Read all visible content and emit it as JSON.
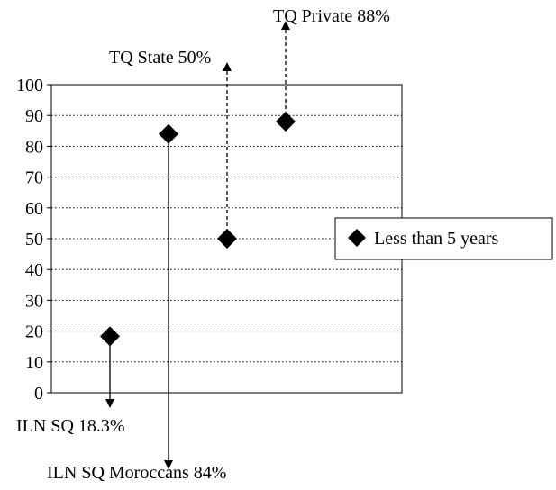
{
  "chart_data": {
    "type": "scatter",
    "title": "",
    "xlabel": "",
    "ylabel": "",
    "ylim": [
      0,
      100
    ],
    "yticks": [
      "0",
      "10",
      "20",
      "30",
      "40",
      "50",
      "60",
      "70",
      "80",
      "90",
      "100"
    ],
    "grid": "horizontal dotted",
    "legend": {
      "position": "right",
      "entries": [
        "Less than 5 years"
      ]
    },
    "series": [
      {
        "name": "Less than 5 years",
        "marker": "diamond",
        "points": [
          {
            "x": 1,
            "y": 18.3
          },
          {
            "x": 2,
            "y": 84
          },
          {
            "x": 3,
            "y": 50
          },
          {
            "x": 4,
            "y": 88
          }
        ]
      }
    ],
    "annotations": [
      {
        "text": "ILN SQ 18.3%",
        "point": 0,
        "arrow": "down",
        "style": "solid"
      },
      {
        "text": "ILN SQ Moroccans 84%",
        "point": 1,
        "arrow": "down",
        "style": "solid"
      },
      {
        "text": "TQ State 50%",
        "point": 2,
        "arrow": "up",
        "style": "dashed"
      },
      {
        "text": "TQ Private 88%",
        "point": 3,
        "arrow": "up",
        "style": "dashed"
      }
    ],
    "colors": {
      "marker": "#000000",
      "grid": "#000000",
      "axis": "#000000"
    }
  }
}
